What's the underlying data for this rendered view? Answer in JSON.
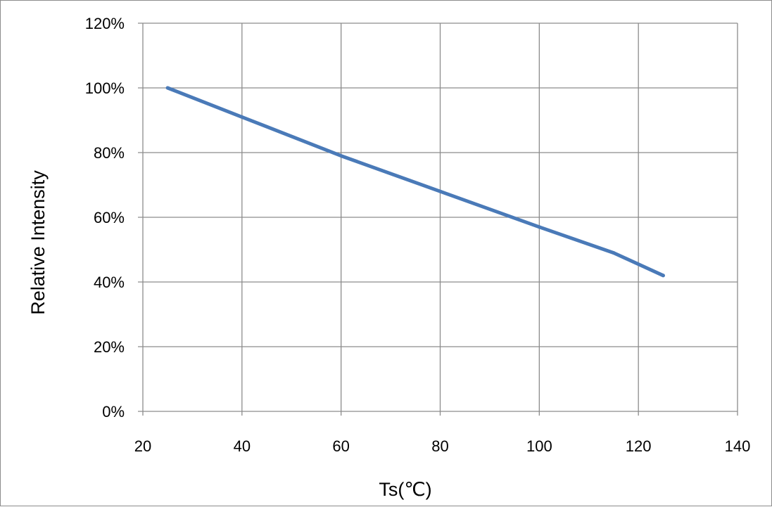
{
  "chart_data": {
    "type": "line",
    "title": "",
    "xlabel": "Ts(℃)",
    "ylabel": "Relative Intensity",
    "xlim": [
      20,
      140
    ],
    "ylim": [
      0,
      120
    ],
    "x_ticks": [
      20,
      40,
      60,
      80,
      100,
      120,
      140
    ],
    "y_ticks": [
      0,
      20,
      40,
      60,
      80,
      100,
      120
    ],
    "y_tick_labels": [
      "0%",
      "20%",
      "40%",
      "60%",
      "80%",
      "100%",
      "120%"
    ],
    "grid": true,
    "legend": "none",
    "series": [
      {
        "color": "#4a7ab8",
        "x": [
          25,
          40,
          60,
          80,
          100,
          115,
          125
        ],
        "y": [
          100,
          91,
          79,
          68,
          57,
          49,
          42
        ]
      }
    ]
  }
}
